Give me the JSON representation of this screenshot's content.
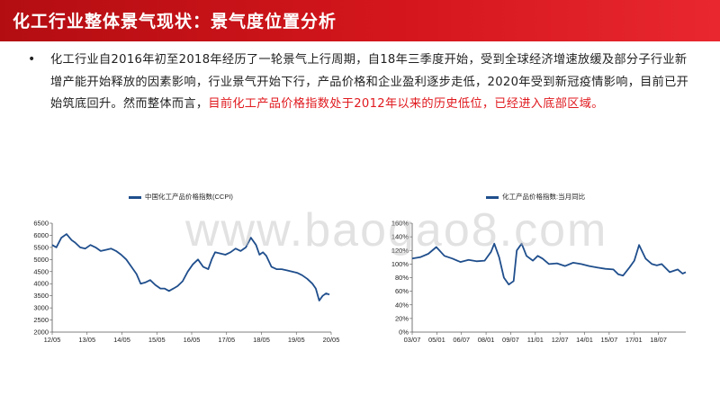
{
  "header": {
    "title": "化工行业整体景气现状：景气度位置分析"
  },
  "body": {
    "bullet": "•",
    "text_normal": "化工行业自2016年初至2018年经历了一轮景气上行周期，自18年三季度开始，受到全球经济增速放缓及部分子行业新增产能开始释放的因素影响，行业景气开始下行，产品价格和企业盈利逐步走低，2020年受到新冠疫情影响，目前已开始筑底回升。然而整体而言，",
    "text_highlight": "目前化工产品价格指数处于2012年以来的历史低位，已经进入底部区域。"
  },
  "watermark": "www.baogao8.com",
  "chart_data": [
    {
      "type": "line",
      "legend": "中国化工产品价格指数(CCPI)",
      "color": "#1f4e8c",
      "x_ticks": [
        "12/05",
        "13/05",
        "14/05",
        "15/05",
        "16/05",
        "17/05",
        "18/05",
        "19/05",
        "20/05"
      ],
      "y_ticks": [
        "6500",
        "6000",
        "5500",
        "5000",
        "4500",
        "4000",
        "3500",
        "3000",
        "2500",
        "2000"
      ],
      "ylim": [
        2000,
        6500
      ],
      "xlim": [
        2012.33,
        2020.5
      ],
      "x": [
        2012.33,
        2012.45,
        2012.6,
        2012.75,
        2012.9,
        2013.0,
        2013.15,
        2013.3,
        2013.45,
        2013.6,
        2013.75,
        2013.9,
        2014.05,
        2014.2,
        2014.35,
        2014.5,
        2014.65,
        2014.8,
        2014.92,
        2015.05,
        2015.2,
        2015.35,
        2015.5,
        2015.62,
        2015.75,
        2015.88,
        2016.0,
        2016.15,
        2016.3,
        2016.45,
        2016.6,
        2016.75,
        2016.9,
        2017.0,
        2017.1,
        2017.25,
        2017.4,
        2017.55,
        2017.7,
        2017.85,
        2018.0,
        2018.15,
        2018.3,
        2018.4,
        2018.5,
        2018.6,
        2018.75,
        2018.9,
        2019.05,
        2019.2,
        2019.35,
        2019.5,
        2019.65,
        2019.8,
        2019.95,
        2020.05,
        2020.15,
        2020.25,
        2020.35,
        2020.45
      ],
      "y": [
        5600,
        5500,
        5900,
        6050,
        5800,
        5700,
        5500,
        5450,
        5600,
        5500,
        5350,
        5400,
        5450,
        5350,
        5200,
        5000,
        4700,
        4400,
        4000,
        4050,
        4150,
        3950,
        3800,
        3800,
        3700,
        3800,
        3900,
        4100,
        4500,
        4800,
        5000,
        4700,
        4600,
        5000,
        5300,
        5250,
        5200,
        5300,
        5450,
        5350,
        5500,
        5900,
        5600,
        5200,
        5300,
        5150,
        4700,
        4600,
        4600,
        4550,
        4500,
        4450,
        4350,
        4200,
        4000,
        3800,
        3300,
        3500,
        3600,
        3550
      ]
    },
    {
      "type": "line",
      "legend": "化工产品价格指数:当月同比",
      "color": "#1f4e8c",
      "x_ticks": [
        "03/07",
        "05/01",
        "06/07",
        "08/01",
        "09/07",
        "11/01",
        "12/07",
        "14/01",
        "15/07",
        "17/01",
        "18/07"
      ],
      "y_ticks": [
        "160%",
        "140%",
        "120%",
        "100%",
        "80%",
        "60%",
        "40%",
        "20%",
        "0%"
      ],
      "ylim": [
        0,
        160
      ],
      "xlim": [
        2003.5,
        2020.5
      ],
      "x": [
        2003.5,
        2004.0,
        2004.5,
        2005.0,
        2005.5,
        2006.0,
        2006.5,
        2007.0,
        2007.5,
        2008.0,
        2008.4,
        2008.6,
        2008.9,
        2009.2,
        2009.5,
        2009.8,
        2010.0,
        2010.3,
        2010.6,
        2011.0,
        2011.3,
        2011.6,
        2012.0,
        2012.5,
        2013.0,
        2013.5,
        2014.0,
        2014.5,
        2015.0,
        2015.5,
        2016.0,
        2016.3,
        2016.6,
        2017.0,
        2017.3,
        2017.6,
        2018.0,
        2018.4,
        2018.7,
        2019.0,
        2019.5,
        2020.0,
        2020.3,
        2020.5
      ],
      "y": [
        108,
        110,
        115,
        125,
        112,
        108,
        103,
        106,
        104,
        105,
        118,
        130,
        110,
        80,
        70,
        75,
        120,
        130,
        112,
        105,
        112,
        108,
        100,
        101,
        97,
        102,
        100,
        97,
        95,
        93,
        92,
        85,
        83,
        95,
        105,
        128,
        108,
        100,
        98,
        100,
        88,
        92,
        86,
        88
      ]
    }
  ]
}
